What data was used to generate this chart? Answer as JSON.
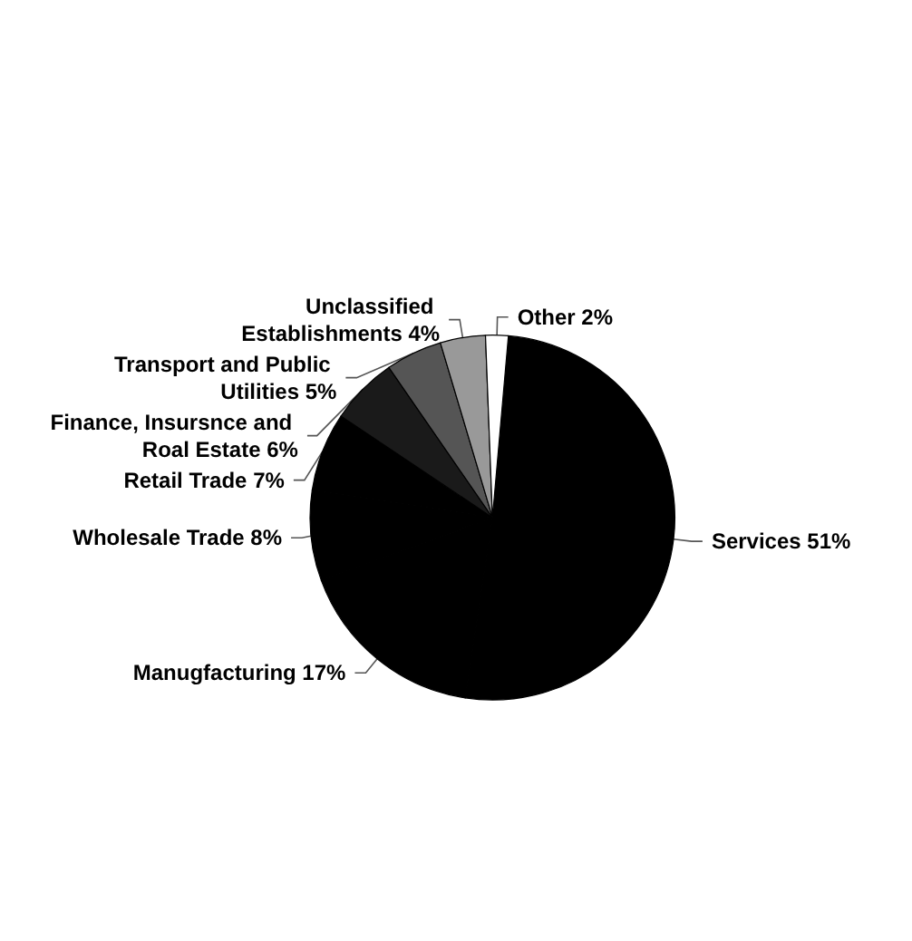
{
  "chart_data": {
    "type": "pie",
    "categories": [
      "Services",
      "Manugfacturing",
      "Wholesale Trade",
      "Retail Trade",
      "Finance, Insursnce and Roal Estate",
      "Transport and Public Utilities",
      "Unclassified Establishments",
      "Other"
    ],
    "values": [
      51,
      17,
      8,
      7,
      6,
      5,
      4,
      2
    ],
    "colors": [
      "#000000",
      "#000000",
      "#000000",
      "#000000",
      "#1a1a1a",
      "#555555",
      "#999999",
      "#ffffff"
    ],
    "value_labels": [
      "51%",
      "17%",
      "8%",
      "7%",
      "6%",
      "5%",
      "4%",
      "2%"
    ],
    "legend": false
  }
}
